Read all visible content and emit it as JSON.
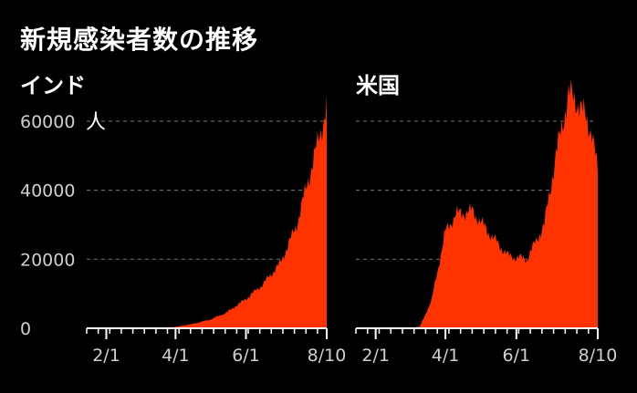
{
  "title": "新規感染者数の推移",
  "colors": {
    "background": "#000000",
    "series": "#ff3300",
    "grid": "#777777",
    "axis": "#ffffff",
    "text": "#ffffff"
  },
  "chart_data": [
    {
      "type": "area",
      "title": "インド",
      "unit": "人",
      "ylim": [
        0,
        70000
      ],
      "yticks": [
        0,
        20000,
        40000,
        60000
      ],
      "ytick_labels": [
        "0",
        "20000",
        "40000",
        "60000"
      ],
      "unit_at_tick": 60000,
      "xlim": [
        "2020-01-15",
        "2020-08-10"
      ],
      "xticks": [
        "2020-02-01",
        "2020-04-01",
        "2020-06-01",
        "2020-08-10"
      ],
      "xtick_labels": [
        "2/1",
        "4/1",
        "6/1",
        "8/10"
      ],
      "grid": "horizontal dashed",
      "series": [
        {
          "x": [
            "2020-03-15",
            "2020-04-01",
            "2020-04-15",
            "2020-05-01",
            "2020-05-15",
            "2020-06-01",
            "2020-06-15",
            "2020-07-01",
            "2020-07-15",
            "2020-08-01",
            "2020-08-10"
          ],
          "y": [
            100,
            400,
            1200,
            2500,
            4500,
            8500,
            12500,
            19000,
            30000,
            52000,
            64000
          ]
        }
      ]
    },
    {
      "type": "area",
      "title": "米国",
      "unit": "",
      "ylim": [
        0,
        70000
      ],
      "yticks": [
        0,
        20000,
        40000,
        60000
      ],
      "ytick_labels": [],
      "xlim": [
        "2020-01-15",
        "2020-08-10"
      ],
      "xticks": [
        "2020-02-01",
        "2020-04-01",
        "2020-06-01",
        "2020-08-10"
      ],
      "xtick_labels": [
        "2/1",
        "4/1",
        "6/1",
        "8/10"
      ],
      "grid": "horizontal dashed",
      "series": [
        {
          "x": [
            "2020-03-01",
            "2020-03-10",
            "2020-03-20",
            "2020-04-01",
            "2020-04-10",
            "2020-04-24",
            "2020-05-10",
            "2020-05-25",
            "2020-06-10",
            "2020-06-25",
            "2020-07-05",
            "2020-07-16",
            "2020-07-25",
            "2020-08-05",
            "2020-08-10"
          ],
          "y": [
            0,
            500,
            8000,
            28000,
            33000,
            34000,
            27000,
            21000,
            20000,
            30000,
            50000,
            68000,
            65000,
            57000,
            45000
          ]
        }
      ]
    }
  ]
}
